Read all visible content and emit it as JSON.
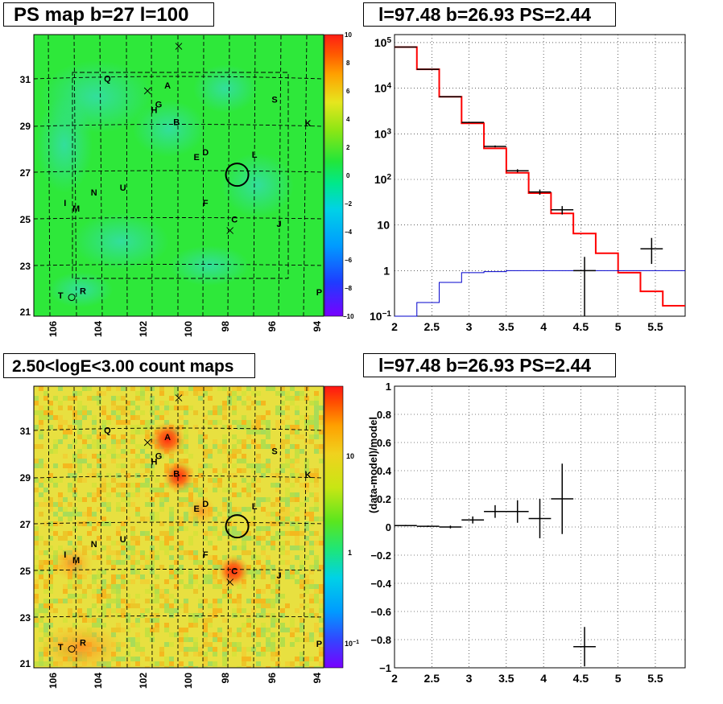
{
  "panels": {
    "ps_map": {
      "title": "PS map b=27 l=100",
      "x_ticks": [
        "106",
        "104",
        "102",
        "100",
        "98",
        "96",
        "94"
      ],
      "y_ticks": [
        "31",
        "29",
        "27",
        "25",
        "23",
        "21"
      ],
      "colorbar_ticks": [
        "10",
        "8",
        "6",
        "4",
        "2",
        "0",
        "−2",
        "−4",
        "−6",
        "−8",
        "−10"
      ],
      "colorbar_range": [
        -10,
        10
      ],
      "colors": {
        "background": "#2ee83a",
        "blobs": "#34dca0"
      }
    },
    "spectrum": {
      "title": "l=97.48 b=26.93 PS=2.44",
      "x_ticks": [
        "2",
        "2.5",
        "3",
        "3.5",
        "4",
        "4.5",
        "5",
        "5.5"
      ],
      "y_ticks": [
        "10",
        "1"
      ],
      "y_scale": "log"
    },
    "count_map": {
      "title": "2.50<logE<3.00 count maps",
      "x_ticks": [
        "106",
        "104",
        "102",
        "100",
        "98",
        "96",
        "94"
      ],
      "y_ticks": [
        "31",
        "29",
        "27",
        "25",
        "23",
        "21"
      ],
      "colorbar_ticks": [
        "10",
        "1"
      ],
      "colors": {
        "background": "#e8e040",
        "hot": "#ff3a1a"
      }
    },
    "residual": {
      "title": "l=97.48 b=26.93 PS=2.44",
      "ylabel": "(data-model)/model",
      "x_ticks": [
        "2",
        "2.5",
        "3",
        "3.5",
        "4",
        "4.5",
        "5",
        "5.5"
      ],
      "y_ticks": [
        "1",
        "0.8",
        "0.6",
        "0.4",
        "0.2",
        "0",
        "−0.2",
        "−0.4",
        "−0.6",
        "−0.8",
        "−1"
      ]
    }
  },
  "sources": [
    {
      "name": "Q",
      "l": 103.3,
      "b": 30.9
    },
    {
      "name": "A",
      "l": 100.6,
      "b": 30.6
    },
    {
      "name": "G",
      "l": 101.0,
      "b": 29.8
    },
    {
      "name": "H",
      "l": 101.2,
      "b": 29.55
    },
    {
      "name": "B",
      "l": 100.2,
      "b": 29.05
    },
    {
      "name": "S",
      "l": 95.8,
      "b": 30.0
    },
    {
      "name": "K",
      "l": 94.3,
      "b": 29.0
    },
    {
      "name": "E",
      "l": 99.3,
      "b": 27.55
    },
    {
      "name": "D",
      "l": 98.9,
      "b": 27.75
    },
    {
      "name": "L",
      "l": 96.7,
      "b": 27.65
    },
    {
      "name": "N",
      "l": 103.9,
      "b": 26.05
    },
    {
      "name": "U",
      "l": 102.6,
      "b": 26.25
    },
    {
      "name": "I",
      "l": 105.2,
      "b": 25.6
    },
    {
      "name": "M",
      "l": 104.7,
      "b": 25.35
    },
    {
      "name": "F",
      "l": 98.9,
      "b": 25.6
    },
    {
      "name": "C",
      "l": 97.6,
      "b": 24.9
    },
    {
      "name": "J",
      "l": 95.6,
      "b": 24.7
    },
    {
      "name": "T",
      "l": 105.4,
      "b": 21.65
    },
    {
      "name": "R",
      "l": 104.4,
      "b": 21.85
    },
    {
      "name": "P",
      "l": 93.8,
      "b": 21.8
    }
  ],
  "crosses": [
    {
      "l": 100.1,
      "b": 32.4
    },
    {
      "l": 101.5,
      "b": 30.5
    },
    {
      "l": 97.8,
      "b": 24.55
    }
  ],
  "open_circles": [
    {
      "l": 104.9,
      "b": 21.6
    }
  ],
  "ps_circle": {
    "l": 97.48,
    "b": 26.93
  },
  "chart_data": [
    {
      "type": "heatmap",
      "title": "PS map b=27 l=100",
      "xlim": [
        106.6,
        93.6
      ],
      "ylim": [
        20.9,
        32.9
      ],
      "zlim": [
        -10,
        10
      ],
      "grid": true
    },
    {
      "type": "line",
      "title": "l=97.48 b=26.93 PS=2.44",
      "xlim": [
        2.0,
        5.9
      ],
      "ylim": [
        0.1,
        150000
      ],
      "y_scale": "log",
      "grid": true,
      "series": [
        {
          "style": "step",
          "color": "#ff0000",
          "edges": [
            2.0,
            2.3,
            2.6,
            2.9,
            3.2,
            3.5,
            3.8,
            4.1,
            4.4,
            4.7,
            5.0,
            5.3,
            5.6,
            5.9
          ],
          "values": [
            80000,
            26000,
            6500,
            1700,
            480,
            140,
            50,
            18,
            6.5,
            2.4,
            0.9,
            0.35,
            0.17
          ]
        },
        {
          "style": "step",
          "color": "#0000cc",
          "edges": [
            2.0,
            2.3,
            2.6,
            2.9,
            3.2,
            3.5,
            3.8,
            4.1,
            4.4,
            4.7,
            5.0,
            5.3,
            5.6,
            5.9
          ],
          "values": [
            0.1,
            0.2,
            0.55,
            0.9,
            0.95,
            1.0,
            1.0,
            1.0,
            1.0,
            1.0,
            1.0,
            1.0,
            1.0
          ]
        },
        {
          "style": "errorbar",
          "color": "#000000",
          "points": [
            {
              "x": 2.15,
              "y": 80000,
              "xerr": 0.15,
              "ylo": 79500,
              "yhi": 80500
            },
            {
              "x": 2.45,
              "y": 26000,
              "xerr": 0.15,
              "ylo": 25800,
              "yhi": 26200
            },
            {
              "x": 2.75,
              "y": 6500,
              "xerr": 0.15,
              "ylo": 6400,
              "yhi": 6600
            },
            {
              "x": 3.05,
              "y": 1780,
              "xerr": 0.15,
              "ylo": 1740,
              "yhi": 1820
            },
            {
              "x": 3.35,
              "y": 530,
              "xerr": 0.15,
              "ylo": 505,
              "yhi": 555
            },
            {
              "x": 3.65,
              "y": 155,
              "xerr": 0.15,
              "ylo": 143,
              "yhi": 167
            },
            {
              "x": 3.95,
              "y": 53,
              "xerr": 0.15,
              "ylo": 46,
              "yhi": 60
            },
            {
              "x": 4.25,
              "y": 21.6,
              "xerr": 0.15,
              "ylo": 17,
              "yhi": 26
            },
            {
              "x": 4.55,
              "y": 1.0,
              "xerr": 0.15,
              "ylo": 0.1,
              "yhi": 2.0
            },
            {
              "x": 5.45,
              "y": 3.0,
              "xerr": 0.15,
              "ylo": 1.4,
              "yhi": 5.2
            }
          ]
        }
      ]
    },
    {
      "type": "heatmap",
      "title": "2.50<logE<3.00 count maps",
      "xlim": [
        106.6,
        93.6
      ],
      "ylim": [
        20.9,
        32.9
      ],
      "z_scale": "log",
      "grid": true
    },
    {
      "type": "scatter",
      "title": "l=97.48 b=26.93 PS=2.44",
      "ylabel": "(data-model)/model",
      "xlim": [
        2.0,
        5.9
      ],
      "ylim": [
        -1.0,
        1.0
      ],
      "grid": true,
      "points": [
        {
          "x": 2.15,
          "y": 0.01,
          "xerr": 0.15,
          "yerr": 0.005
        },
        {
          "x": 2.45,
          "y": 0.005,
          "xerr": 0.15,
          "yerr": 0.005
        },
        {
          "x": 2.75,
          "y": 0.0,
          "xerr": 0.15,
          "yerr": 0.01
        },
        {
          "x": 3.05,
          "y": 0.05,
          "xerr": 0.15,
          "yerr": 0.025
        },
        {
          "x": 3.35,
          "y": 0.11,
          "xerr": 0.15,
          "yerr": 0.045
        },
        {
          "x": 3.65,
          "y": 0.11,
          "xerr": 0.15,
          "yerr": 0.08
        },
        {
          "x": 3.95,
          "y": 0.06,
          "xerr": 0.15,
          "yerr": 0.14
        },
        {
          "x": 4.25,
          "y": 0.2,
          "xerr": 0.15,
          "yerr": 0.25
        },
        {
          "x": 4.55,
          "y": -0.85,
          "xerr": 0.15,
          "yerr": 0.14
        }
      ]
    }
  ]
}
